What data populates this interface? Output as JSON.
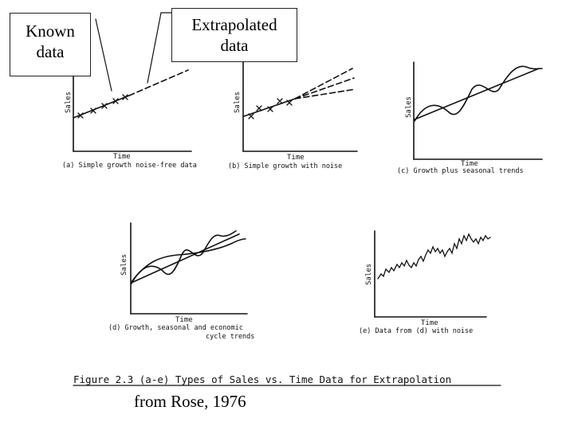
{
  "callouts": {
    "known": {
      "line1": "Known",
      "line2": "data"
    },
    "extrapolated": {
      "line1": "Extrapolated",
      "line2": "data"
    }
  },
  "panels": {
    "a": {
      "xlabel": "Time",
      "ylabel": "Sales",
      "caption": "(a) Simple growth noise-free data"
    },
    "b": {
      "xlabel": "Time",
      "ylabel": "Sales",
      "caption": "(b) Simple growth with noise"
    },
    "c": {
      "xlabel": "Time",
      "ylabel": "Sales",
      "caption": "(c) Growth plus seasonal trends"
    },
    "d": {
      "xlabel": "Time",
      "ylabel": "Sales",
      "caption_line1": "(d) Growth, seasonal and economic",
      "caption_line2": "cycle trends"
    },
    "e": {
      "xlabel": "Time",
      "ylabel": "Sales",
      "caption": "(e) Data from (d) with noise"
    }
  },
  "figure_caption": "Figure 2.3 (a-e)  Types of Sales vs. Time Data for Extrapolation",
  "credit": "from Rose, 1976"
}
